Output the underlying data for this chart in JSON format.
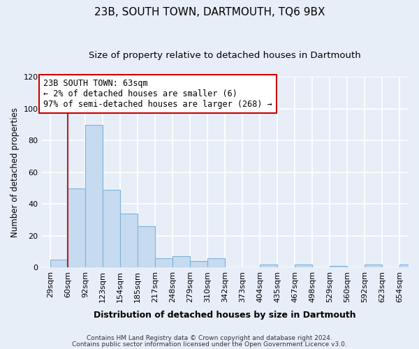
{
  "title": "23B, SOUTH TOWN, DARTMOUTH, TQ6 9BX",
  "subtitle": "Size of property relative to detached houses in Dartmouth",
  "xlabel": "Distribution of detached houses by size in Dartmouth",
  "ylabel": "Number of detached properties",
  "footer_line1": "Contains HM Land Registry data © Crown copyright and database right 2024.",
  "footer_line2": "Contains public sector information licensed under the Open Government Licence v3.0.",
  "bin_labels": [
    "29sqm",
    "60sqm",
    "92sqm",
    "123sqm",
    "154sqm",
    "185sqm",
    "217sqm",
    "248sqm",
    "279sqm",
    "310sqm",
    "342sqm",
    "373sqm",
    "404sqm",
    "435sqm",
    "467sqm",
    "498sqm",
    "529sqm",
    "560sqm",
    "592sqm",
    "623sqm",
    "654sqm"
  ],
  "bar_values": [
    5,
    50,
    90,
    49,
    34,
    26,
    6,
    7,
    4,
    6,
    0,
    0,
    2,
    0,
    2,
    0,
    1,
    0,
    2,
    0,
    2
  ],
  "bar_color": "#c6daf0",
  "bar_edgecolor": "#7fb3d8",
  "bar_linewidth": 0.8,
  "vline_x_index": 0,
  "vline_color": "#b22222",
  "vline_linewidth": 1.5,
  "annotation_text_line1": "23B SOUTH TOWN: 63sqm",
  "annotation_text_line2": "← 2% of detached houses are smaller (6)",
  "annotation_text_line3": "97% of semi-detached houses are larger (268) →",
  "annotation_fontsize": 8.5,
  "annotation_box_color": "white",
  "annotation_box_edgecolor": "#cc0000",
  "ylim": [
    0,
    120
  ],
  "yticks": [
    0,
    20,
    40,
    60,
    80,
    100,
    120
  ],
  "background_color": "#e8eef8",
  "plot_bg_color": "#e8eef8",
  "grid_color": "white",
  "title_fontsize": 11,
  "subtitle_fontsize": 9.5,
  "xlabel_fontsize": 9,
  "ylabel_fontsize": 8.5,
  "tick_fontsize": 8
}
